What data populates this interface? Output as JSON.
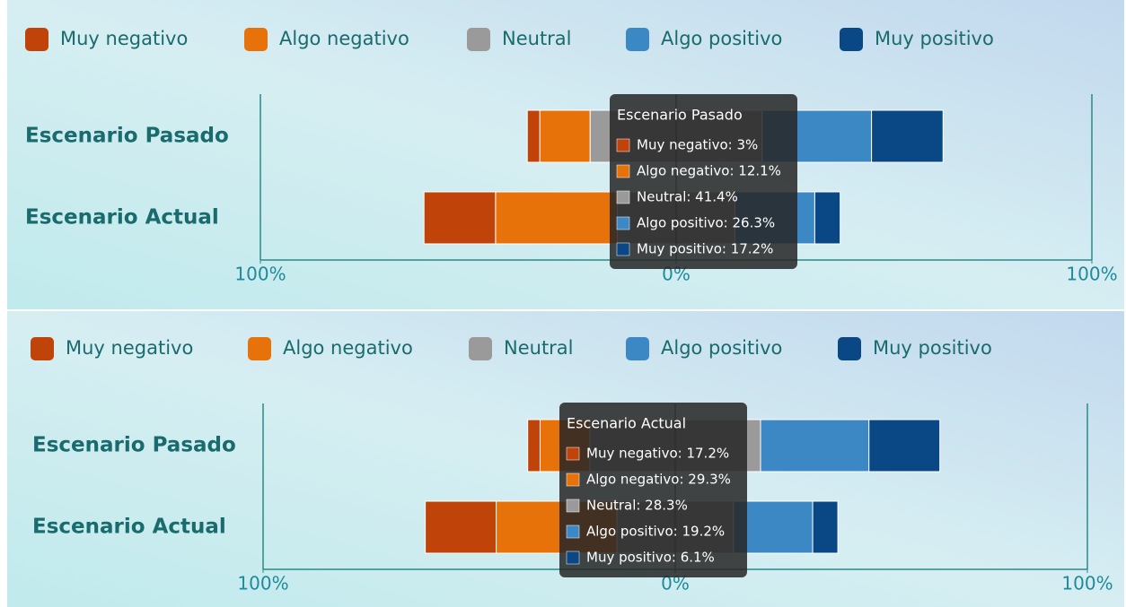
{
  "chart_data": [
    {
      "type": "diverging-bar",
      "categories": [
        "Escenario Pasado",
        "Escenario Actual"
      ],
      "series": [
        {
          "name": "Muy negativo",
          "color": "#c0440a",
          "values": [
            3,
            17.2
          ]
        },
        {
          "name": "Algo negativo",
          "color": "#e8720a",
          "values": [
            12.1,
            29.3
          ]
        },
        {
          "name": "Neutral",
          "color": "#9a9a9a",
          "values": [
            41.4,
            28.3
          ]
        },
        {
          "name": "Algo positivo",
          "color": "#3c88c4",
          "values": [
            26.3,
            19.2
          ]
        },
        {
          "name": "Muy positivo",
          "color": "#0a4785",
          "values": [
            17.2,
            6.1
          ]
        }
      ],
      "xlim": [
        -100,
        100
      ],
      "xticks": [
        {
          "value": -100,
          "label": "100%"
        },
        {
          "value": 0,
          "label": "0%"
        },
        {
          "value": 100,
          "label": "100%"
        }
      ],
      "legend": "top",
      "tooltip": {
        "title": "Escenario Pasado",
        "items": [
          "Muy negativo: 3%",
          "Algo negativo: 12.1%",
          "Neutral: 41.4%",
          "Algo positivo: 26.3%",
          "Muy positivo: 17.2%"
        ]
      }
    },
    {
      "type": "diverging-bar",
      "categories": [
        "Escenario Pasado",
        "Escenario Actual"
      ],
      "series": [
        {
          "name": "Muy negativo",
          "color": "#c0440a",
          "values": [
            3,
            17.2
          ]
        },
        {
          "name": "Algo negativo",
          "color": "#e8720a",
          "values": [
            12.1,
            29.3
          ]
        },
        {
          "name": "Neutral",
          "color": "#9a9a9a",
          "values": [
            41.4,
            28.3
          ]
        },
        {
          "name": "Algo positivo",
          "color": "#3c88c4",
          "values": [
            26.3,
            19.2
          ]
        },
        {
          "name": "Muy positivo",
          "color": "#0a4785",
          "values": [
            17.2,
            6.1
          ]
        }
      ],
      "xlim": [
        -100,
        100
      ],
      "xticks": [
        {
          "value": -100,
          "label": "100%"
        },
        {
          "value": 0,
          "label": "0%"
        },
        {
          "value": 100,
          "label": "100%"
        }
      ],
      "legend": "top",
      "tooltip": {
        "title": "Escenario Actual",
        "items": [
          "Muy negativo: 17.2%",
          "Algo negativo: 29.3%",
          "Neutral: 28.3%",
          "Algo positivo: 19.2%",
          "Muy positivo: 6.1%"
        ]
      }
    }
  ]
}
